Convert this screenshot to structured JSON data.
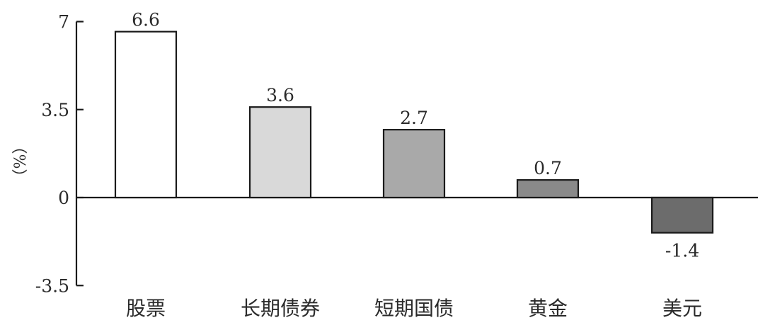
{
  "chart_data": {
    "type": "bar",
    "ylabel": "（%）",
    "ylim": [
      -3.5,
      7
    ],
    "yticks": [
      7,
      3.5,
      0,
      -3.5
    ],
    "ytick_labels": [
      "7",
      "3.5",
      "0",
      "-3.5"
    ],
    "categories": [
      "股票",
      "长期债券",
      "短期国债",
      "黄金",
      "美元"
    ],
    "values": [
      6.6,
      3.6,
      2.7,
      0.7,
      -1.4
    ],
    "data_labels": [
      "6.6",
      "3.6",
      "2.7",
      "0.7",
      "-1.4"
    ],
    "colors": [
      "#ffffff",
      "#d9d9d9",
      "#a9a9a9",
      "#8a8a8a",
      "#6c6c6c"
    ],
    "edge_color": "#1a1a1a",
    "grid": false,
    "legend": "none"
  }
}
